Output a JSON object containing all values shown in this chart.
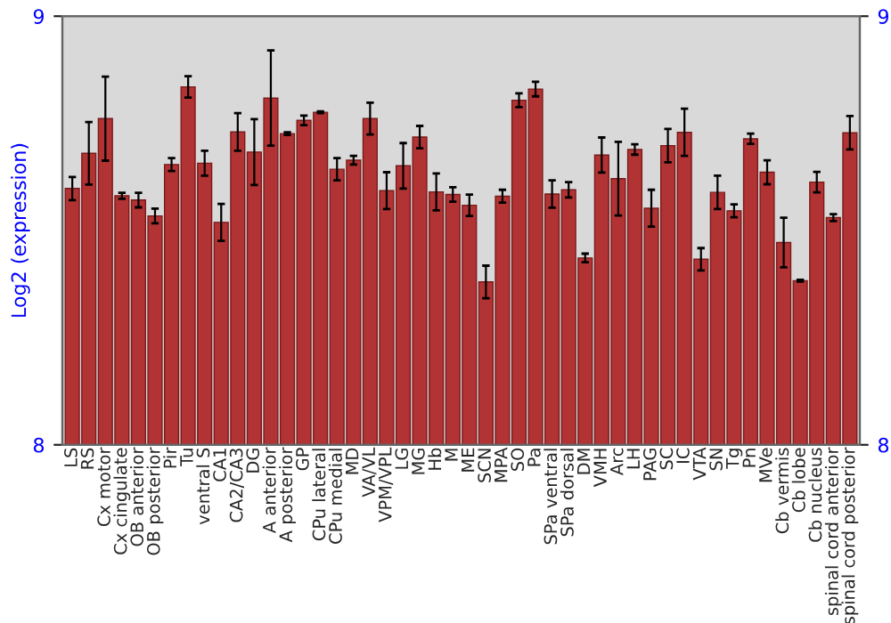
{
  "chart_data": {
    "type": "bar",
    "ylabel": "Log2 (expression)",
    "categories": [
      "LS",
      "RS",
      "Cx motor",
      "Cx cingulate",
      "OB anterior",
      "OB posterior",
      "Pir",
      "Tu",
      "ventral S",
      "CA1",
      "CA2/CA3",
      "DG",
      "A anterior",
      "A posterior",
      "GP",
      "CPu lateral",
      "CPu medial",
      "MD",
      "VA/VL",
      "VPM/VPL",
      "LG",
      "MG",
      "Hb",
      "M",
      "ME",
      "SCN",
      "MPA",
      "SO",
      "Pa",
      "SPa ventral",
      "SPa dorsal",
      "DM",
      "VMH",
      "Arc",
      "LH",
      "PAG",
      "SC",
      "IC",
      "VTA",
      "SN",
      "Tg",
      "Pn",
      "MVe",
      "Cb vermis",
      "Cb lobe",
      "Cb nucleus",
      "spinal cord anterior",
      "spinal cord posterior"
    ],
    "values": [
      8.598,
      8.68,
      8.761,
      8.581,
      8.571,
      8.534,
      8.654,
      8.835,
      8.657,
      8.519,
      8.73,
      8.683,
      8.809,
      8.726,
      8.757,
      8.776,
      8.643,
      8.664,
      8.761,
      8.593,
      8.651,
      8.718,
      8.59,
      8.584,
      8.559,
      8.38,
      8.58,
      8.804,
      8.83,
      8.585,
      8.595,
      8.436,
      8.676,
      8.621,
      8.689,
      8.552,
      8.698,
      8.729,
      8.433,
      8.589,
      8.546,
      8.714,
      8.636,
      8.472,
      8.383,
      8.613,
      8.53,
      8.728
    ],
    "errors": [
      0.027,
      0.073,
      0.098,
      0.007,
      0.017,
      0.017,
      0.015,
      0.025,
      0.029,
      0.043,
      0.044,
      0.077,
      0.111,
      0.003,
      0.011,
      0.002,
      0.026,
      0.01,
      0.037,
      0.043,
      0.053,
      0.026,
      0.043,
      0.017,
      0.025,
      0.038,
      0.015,
      0.016,
      0.017,
      0.032,
      0.018,
      0.01,
      0.041,
      0.086,
      0.012,
      0.043,
      0.039,
      0.055,
      0.026,
      0.039,
      0.015,
      0.012,
      0.028,
      0.058,
      0.002,
      0.024,
      0.008,
      0.039
    ],
    "color": "#b23333",
    "ylim": [
      8,
      9
    ],
    "yticks": [
      8,
      9
    ],
    "y2lim": [
      8,
      9
    ],
    "y2ticks": [
      8,
      9
    ],
    "grid": false,
    "legend": false
  }
}
